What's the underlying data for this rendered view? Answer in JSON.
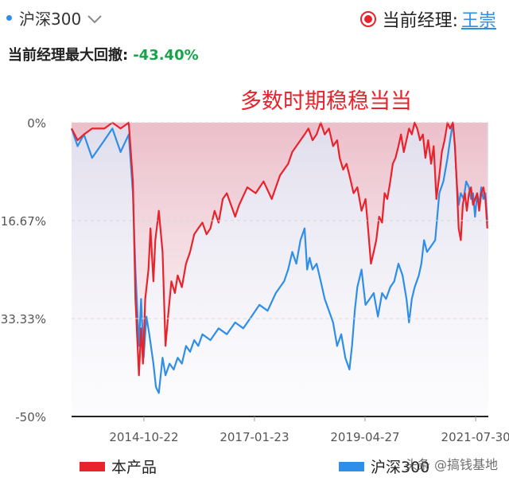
{
  "header": {
    "benchmark_label": "沪深300",
    "manager_prefix": "当前经理:",
    "manager_name": "王崇",
    "max_drawdown_label": "当前经理最大回撤:",
    "max_drawdown_value": "-43.40%"
  },
  "colors": {
    "product": "#e8232c",
    "benchmark": "#2f8ee8",
    "drawdown_value": "#16a34a"
  },
  "icons": [
    "chevron-down-icon",
    "radio-selected-icon"
  ],
  "watermark": "头条 @搞钱基地",
  "chart_data": {
    "type": "area",
    "annotation": "多数时期稳稳当当",
    "ylim": [
      -50,
      0
    ],
    "y_ticks": [
      {
        "value": 0,
        "label": "0%"
      },
      {
        "value": -16.67,
        "label": "-16.67%"
      },
      {
        "value": -33.33,
        "label": "-33.33%"
      },
      {
        "value": -50,
        "label": "-50%"
      }
    ],
    "x_range": [
      "2013-05-01",
      "2021-11-01"
    ],
    "x_ticks": [
      "2014-10-22",
      "2017-01-23",
      "2019-04-27",
      "2021-07-30"
    ],
    "series": [
      {
        "name": "本产品",
        "color": "#e8232c",
        "points": [
          [
            "2013-05-01",
            -1
          ],
          [
            "2013-06-15",
            -3
          ],
          [
            "2013-08-01",
            -2
          ],
          [
            "2013-10-01",
            -1
          ],
          [
            "2014-01-01",
            -1
          ],
          [
            "2014-03-01",
            0
          ],
          [
            "2014-05-01",
            -1
          ],
          [
            "2014-07-01",
            0
          ],
          [
            "2014-08-01",
            -10
          ],
          [
            "2014-08-20",
            -30
          ],
          [
            "2014-09-15",
            -43
          ],
          [
            "2014-10-01",
            -35
          ],
          [
            "2014-10-15",
            -41
          ],
          [
            "2014-11-01",
            -30
          ],
          [
            "2014-11-25",
            -25
          ],
          [
            "2014-12-10",
            -18
          ],
          [
            "2015-01-01",
            -27
          ],
          [
            "2015-01-15",
            -20
          ],
          [
            "2015-02-10",
            -15
          ],
          [
            "2015-03-10",
            -22
          ],
          [
            "2015-04-01",
            -38
          ],
          [
            "2015-04-20",
            -33
          ],
          [
            "2015-05-15",
            -27
          ],
          [
            "2015-06-10",
            -29
          ],
          [
            "2015-07-01",
            -26
          ],
          [
            "2015-08-01",
            -28
          ],
          [
            "2015-09-01",
            -24
          ],
          [
            "2015-10-01",
            -22
          ],
          [
            "2015-11-01",
            -19
          ],
          [
            "2015-12-01",
            -18
          ],
          [
            "2016-01-01",
            -17
          ],
          [
            "2016-02-01",
            -19
          ],
          [
            "2016-03-01",
            -18
          ],
          [
            "2016-04-01",
            -15
          ],
          [
            "2016-05-01",
            -17
          ],
          [
            "2016-06-01",
            -13
          ],
          [
            "2016-07-01",
            -12
          ],
          [
            "2016-08-01",
            -14
          ],
          [
            "2016-09-01",
            -16
          ],
          [
            "2016-10-01",
            -14
          ],
          [
            "2016-12-01",
            -11
          ],
          [
            "2017-02-01",
            -12
          ],
          [
            "2017-04-01",
            -10
          ],
          [
            "2017-06-01",
            -13
          ],
          [
            "2017-08-01",
            -9
          ],
          [
            "2017-10-01",
            -7
          ],
          [
            "2017-11-01",
            -5
          ],
          [
            "2017-12-01",
            -4
          ],
          [
            "2018-01-01",
            -3
          ],
          [
            "2018-02-01",
            -2
          ],
          [
            "2018-03-01",
            -1
          ],
          [
            "2018-04-01",
            -3
          ],
          [
            "2018-05-01",
            -2
          ],
          [
            "2018-06-01",
            0
          ],
          [
            "2018-07-01",
            -2
          ],
          [
            "2018-08-01",
            -1
          ],
          [
            "2018-09-01",
            -4
          ],
          [
            "2018-10-01",
            -3
          ],
          [
            "2018-10-20",
            -6
          ],
          [
            "2018-11-15",
            -8
          ],
          [
            "2018-12-10",
            -7
          ],
          [
            "2019-01-01",
            -9
          ],
          [
            "2019-02-01",
            -12
          ],
          [
            "2019-03-01",
            -11
          ],
          [
            "2019-04-01",
            -15
          ],
          [
            "2019-05-01",
            -13
          ],
          [
            "2019-05-20",
            -18
          ],
          [
            "2019-06-10",
            -24
          ],
          [
            "2019-07-01",
            -22
          ],
          [
            "2019-07-20",
            -20
          ],
          [
            "2019-08-10",
            -16
          ],
          [
            "2019-09-01",
            -17
          ],
          [
            "2019-09-20",
            -12
          ],
          [
            "2019-10-10",
            -13
          ],
          [
            "2019-11-01",
            -10
          ],
          [
            "2019-11-20",
            -7
          ],
          [
            "2019-12-10",
            -6
          ],
          [
            "2020-01-01",
            -4
          ],
          [
            "2020-01-20",
            -2
          ],
          [
            "2020-02-10",
            -5
          ],
          [
            "2020-03-01",
            -3
          ],
          [
            "2020-03-20",
            -1
          ],
          [
            "2020-04-10",
            -2
          ],
          [
            "2020-05-01",
            0
          ],
          [
            "2020-05-20",
            -1
          ],
          [
            "2020-06-10",
            -3
          ],
          [
            "2020-07-01",
            -2
          ],
          [
            "2020-07-20",
            -6
          ],
          [
            "2020-08-10",
            -3
          ],
          [
            "2020-09-01",
            -7
          ],
          [
            "2020-09-20",
            -4
          ],
          [
            "2020-10-10",
            -13
          ],
          [
            "2020-11-01",
            -9
          ],
          [
            "2020-11-20",
            -5
          ],
          [
            "2020-12-10",
            -3
          ],
          [
            "2021-01-01",
            0
          ],
          [
            "2021-01-20",
            -1
          ],
          [
            "2021-02-10",
            0
          ],
          [
            "2021-02-25",
            -4
          ],
          [
            "2021-03-10",
            -10
          ],
          [
            "2021-03-25",
            -18
          ],
          [
            "2021-04-10",
            -20
          ],
          [
            "2021-04-25",
            -14
          ],
          [
            "2021-05-10",
            -12
          ],
          [
            "2021-05-25",
            -15
          ],
          [
            "2021-06-10",
            -12
          ],
          [
            "2021-06-25",
            -11
          ],
          [
            "2021-07-10",
            -14
          ],
          [
            "2021-07-25",
            -13
          ],
          [
            "2021-08-10",
            -12
          ],
          [
            "2021-08-25",
            -15
          ],
          [
            "2021-09-10",
            -12
          ],
          [
            "2021-09-25",
            -11
          ],
          [
            "2021-10-10",
            -13
          ],
          [
            "2021-10-25",
            -18
          ]
        ]
      },
      {
        "name": "沪深300",
        "color": "#2f8ee8",
        "points": [
          [
            "2013-05-01",
            -1
          ],
          [
            "2013-06-15",
            -4
          ],
          [
            "2013-08-01",
            -2
          ],
          [
            "2013-10-01",
            -6
          ],
          [
            "2014-01-01",
            -3
          ],
          [
            "2014-03-01",
            -1
          ],
          [
            "2014-05-01",
            -5
          ],
          [
            "2014-07-01",
            -2
          ],
          [
            "2014-08-01",
            -12
          ],
          [
            "2014-08-20",
            -25
          ],
          [
            "2014-09-15",
            -38
          ],
          [
            "2014-10-01",
            -30
          ],
          [
            "2014-10-20",
            -40
          ],
          [
            "2014-11-10",
            -33
          ],
          [
            "2014-12-01",
            -36
          ],
          [
            "2015-01-01",
            -41
          ],
          [
            "2015-01-20",
            -45
          ],
          [
            "2015-02-10",
            -46
          ],
          [
            "2015-03-10",
            -40
          ],
          [
            "2015-04-01",
            -43
          ],
          [
            "2015-05-01",
            -41
          ],
          [
            "2015-06-01",
            -42
          ],
          [
            "2015-07-01",
            -40
          ],
          [
            "2015-08-01",
            -41
          ],
          [
            "2015-09-01",
            -38
          ],
          [
            "2015-10-01",
            -39
          ],
          [
            "2015-11-01",
            -37
          ],
          [
            "2015-12-01",
            -38
          ],
          [
            "2016-01-01",
            -36
          ],
          [
            "2016-03-01",
            -37
          ],
          [
            "2016-05-01",
            -35
          ],
          [
            "2016-07-01",
            -36
          ],
          [
            "2016-09-01",
            -34
          ],
          [
            "2016-11-01",
            -35
          ],
          [
            "2017-01-01",
            -33
          ],
          [
            "2017-03-01",
            -31
          ],
          [
            "2017-05-01",
            -32
          ],
          [
            "2017-07-01",
            -29
          ],
          [
            "2017-09-01",
            -27
          ],
          [
            "2017-10-01",
            -25
          ],
          [
            "2017-11-01",
            -22
          ],
          [
            "2017-12-01",
            -24
          ],
          [
            "2018-01-01",
            -20
          ],
          [
            "2018-02-01",
            -18
          ],
          [
            "2018-02-20",
            -25
          ],
          [
            "2018-03-10",
            -23
          ],
          [
            "2018-04-01",
            -25
          ],
          [
            "2018-05-01",
            -24
          ],
          [
            "2018-06-01",
            -27
          ],
          [
            "2018-07-01",
            -30
          ],
          [
            "2018-08-01",
            -32
          ],
          [
            "2018-09-01",
            -34
          ],
          [
            "2018-10-01",
            -38
          ],
          [
            "2018-11-01",
            -36
          ],
          [
            "2018-12-01",
            -40
          ],
          [
            "2019-01-01",
            -42
          ],
          [
            "2019-01-20",
            -38
          ],
          [
            "2019-02-10",
            -32
          ],
          [
            "2019-03-01",
            -28
          ],
          [
            "2019-04-01",
            -25
          ],
          [
            "2019-05-01",
            -31
          ],
          [
            "2019-06-01",
            -30
          ],
          [
            "2019-07-01",
            -29
          ],
          [
            "2019-08-01",
            -33
          ],
          [
            "2019-09-01",
            -29
          ],
          [
            "2019-10-01",
            -30
          ],
          [
            "2019-11-01",
            -28
          ],
          [
            "2019-12-01",
            -27
          ],
          [
            "2020-01-01",
            -24
          ],
          [
            "2020-02-01",
            -26
          ],
          [
            "2020-03-01",
            -30
          ],
          [
            "2020-03-20",
            -34
          ],
          [
            "2020-04-10",
            -30
          ],
          [
            "2020-05-01",
            -28
          ],
          [
            "2020-06-01",
            -26
          ],
          [
            "2020-06-20",
            -24
          ],
          [
            "2020-07-10",
            -20
          ],
          [
            "2020-08-01",
            -22
          ],
          [
            "2020-09-01",
            -21
          ],
          [
            "2020-10-01",
            -20
          ],
          [
            "2020-11-01",
            -12
          ],
          [
            "2020-12-01",
            -10
          ],
          [
            "2021-01-01",
            -6
          ],
          [
            "2021-01-20",
            -3
          ],
          [
            "2021-02-10",
            0
          ],
          [
            "2021-02-25",
            -4
          ],
          [
            "2021-03-10",
            -10
          ],
          [
            "2021-03-25",
            -14
          ],
          [
            "2021-04-10",
            -12
          ],
          [
            "2021-05-01",
            -13
          ],
          [
            "2021-05-20",
            -10
          ],
          [
            "2021-06-10",
            -11
          ],
          [
            "2021-06-25",
            -13
          ],
          [
            "2021-07-10",
            -12
          ],
          [
            "2021-07-25",
            -16
          ],
          [
            "2021-08-10",
            -12
          ],
          [
            "2021-08-25",
            -14
          ],
          [
            "2021-09-10",
            -11
          ],
          [
            "2021-09-25",
            -13
          ],
          [
            "2021-10-10",
            -12
          ],
          [
            "2021-10-25",
            -17
          ]
        ]
      }
    ]
  },
  "legend": [
    {
      "name": "本产品",
      "color": "#e8232c"
    },
    {
      "name": "沪深300",
      "color": "#2f8ee8"
    }
  ]
}
